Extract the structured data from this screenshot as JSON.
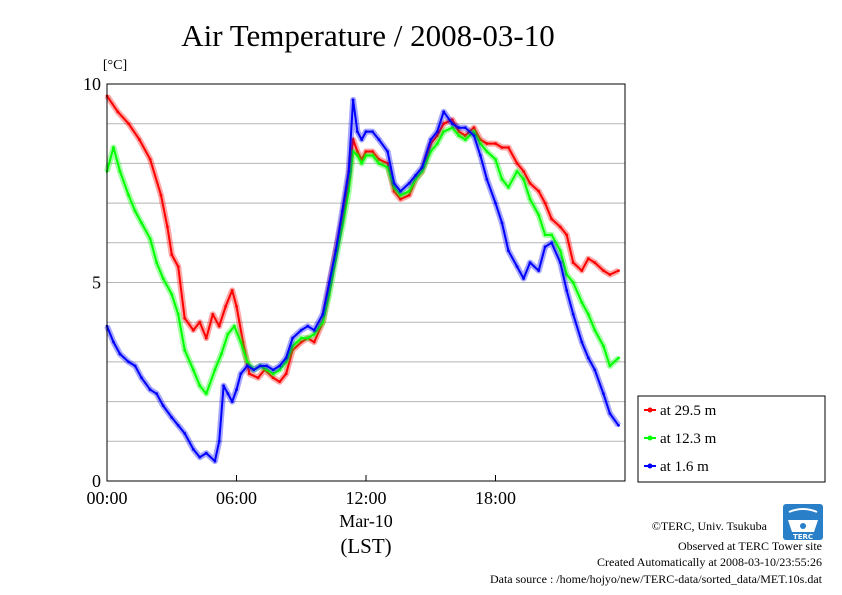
{
  "chart_data": {
    "type": "line",
    "title": "Air Temperature / 2008-03-10",
    "ylabel_unit": "[°C]",
    "ylim": [
      0,
      10
    ],
    "yticks": [
      0,
      5,
      10
    ],
    "ygrid_step": 1,
    "x_label_date": "Mar-10",
    "x_label_tz": "(LST)",
    "xlim_hours": [
      0,
      24
    ],
    "xtick_labels": [
      "00:00",
      "06:00",
      "12:00",
      "18:00"
    ],
    "xtick_hours": [
      0,
      6,
      12,
      18
    ],
    "legend_position": "right",
    "series": [
      {
        "name": "at 29.5 m",
        "color": "#ff0000",
        "x": [
          0,
          0.5,
          1,
          1.5,
          2,
          2.5,
          2.8,
          3,
          3.3,
          3.6,
          4,
          4.3,
          4.6,
          4.9,
          5.2,
          5.5,
          5.8,
          6,
          6.3,
          6.6,
          7,
          7.3,
          7.7,
          8,
          8.3,
          8.6,
          9,
          9.3,
          9.6,
          10,
          10.3,
          10.6,
          10.9,
          11.2,
          11.4,
          11.6,
          11.8,
          12,
          12.3,
          12.6,
          13,
          13.3,
          13.6,
          14,
          14.3,
          14.6,
          15,
          15.3,
          15.6,
          16,
          16.3,
          16.6,
          17,
          17.3,
          17.6,
          18,
          18.3,
          18.6,
          19,
          19.3,
          19.6,
          20,
          20.3,
          20.6,
          21,
          21.3,
          21.6,
          22,
          22.3,
          22.6,
          23,
          23.3,
          23.7
        ],
        "values": [
          9.7,
          9.3,
          9.0,
          8.6,
          8.1,
          7.2,
          6.4,
          5.7,
          5.4,
          4.1,
          3.8,
          4.0,
          3.6,
          4.2,
          3.9,
          4.4,
          4.8,
          4.4,
          3.5,
          2.7,
          2.6,
          2.8,
          2.6,
          2.5,
          2.7,
          3.3,
          3.5,
          3.6,
          3.5,
          4.0,
          4.9,
          5.8,
          6.6,
          7.6,
          8.6,
          8.3,
          8.1,
          8.3,
          8.3,
          8.1,
          8.0,
          7.3,
          7.1,
          7.2,
          7.6,
          7.8,
          8.5,
          8.7,
          9.0,
          9.1,
          8.8,
          8.7,
          8.9,
          8.6,
          8.5,
          8.5,
          8.4,
          8.4,
          8.0,
          7.8,
          7.5,
          7.3,
          7.0,
          6.6,
          6.4,
          6.2,
          5.5,
          5.3,
          5.6,
          5.5,
          5.3,
          5.2,
          5.3
        ]
      },
      {
        "name": "at 12.3 m",
        "color": "#00ff00",
        "x": [
          0,
          0.3,
          0.6,
          1,
          1.3,
          1.6,
          2,
          2.3,
          2.6,
          3,
          3.3,
          3.6,
          4,
          4.3,
          4.6,
          5,
          5.3,
          5.6,
          5.9,
          6.2,
          6.5,
          6.8,
          7.1,
          7.4,
          7.7,
          8,
          8.3,
          8.6,
          9,
          9.3,
          9.6,
          10,
          10.3,
          10.6,
          10.9,
          11.2,
          11.4,
          11.6,
          11.8,
          12,
          12.3,
          12.6,
          13,
          13.3,
          13.6,
          14,
          14.3,
          14.6,
          15,
          15.3,
          15.6,
          16,
          16.3,
          16.6,
          17,
          17.3,
          17.6,
          18,
          18.3,
          18.6,
          19,
          19.3,
          19.6,
          20,
          20.3,
          20.6,
          21,
          21.3,
          21.6,
          22,
          22.3,
          22.6,
          23,
          23.3,
          23.7
        ],
        "values": [
          7.8,
          8.4,
          7.8,
          7.2,
          6.8,
          6.5,
          6.1,
          5.5,
          5.1,
          4.7,
          4.2,
          3.3,
          2.8,
          2.4,
          2.2,
          2.8,
          3.2,
          3.7,
          3.9,
          3.5,
          3.0,
          2.8,
          2.9,
          2.8,
          2.7,
          2.8,
          3.0,
          3.4,
          3.6,
          3.6,
          3.7,
          4.0,
          4.7,
          5.6,
          6.4,
          7.3,
          8.3,
          8.2,
          8.0,
          8.2,
          8.2,
          8.0,
          7.9,
          7.4,
          7.2,
          7.3,
          7.6,
          7.8,
          8.3,
          8.5,
          8.8,
          8.9,
          8.7,
          8.6,
          8.8,
          8.5,
          8.3,
          8.1,
          7.6,
          7.4,
          7.8,
          7.6,
          7.1,
          6.7,
          6.2,
          6.2,
          5.8,
          5.2,
          5.0,
          4.5,
          4.2,
          3.8,
          3.4,
          2.9,
          3.1
        ]
      },
      {
        "name": "at 1.6 m",
        "color": "#0000ff",
        "x": [
          0,
          0.3,
          0.6,
          1,
          1.3,
          1.6,
          2,
          2.3,
          2.6,
          3,
          3.3,
          3.6,
          4,
          4.3,
          4.6,
          5,
          5.2,
          5.4,
          5.6,
          5.8,
          6,
          6.2,
          6.5,
          6.8,
          7.1,
          7.4,
          7.7,
          8,
          8.3,
          8.6,
          9,
          9.3,
          9.6,
          10,
          10.3,
          10.6,
          10.9,
          11.2,
          11.4,
          11.6,
          11.8,
          12,
          12.3,
          12.6,
          13,
          13.3,
          13.6,
          14,
          14.3,
          14.6,
          15,
          15.3,
          15.6,
          16,
          16.3,
          16.6,
          17,
          17.3,
          17.6,
          18,
          18.3,
          18.6,
          19,
          19.3,
          19.6,
          20,
          20.3,
          20.6,
          21,
          21.3,
          21.6,
          22,
          22.3,
          22.6,
          23,
          23.3,
          23.7
        ],
        "values": [
          3.9,
          3.5,
          3.2,
          3.0,
          2.9,
          2.6,
          2.3,
          2.2,
          1.9,
          1.6,
          1.4,
          1.2,
          0.8,
          0.6,
          0.7,
          0.5,
          1.0,
          2.4,
          2.2,
          2.0,
          2.3,
          2.7,
          2.9,
          2.8,
          2.9,
          2.9,
          2.8,
          2.9,
          3.1,
          3.6,
          3.8,
          3.9,
          3.8,
          4.2,
          5.0,
          5.8,
          6.8,
          7.8,
          9.6,
          8.8,
          8.6,
          8.8,
          8.8,
          8.6,
          8.3,
          7.5,
          7.3,
          7.5,
          7.7,
          7.9,
          8.6,
          8.8,
          9.3,
          9.0,
          8.9,
          8.9,
          8.7,
          8.2,
          7.6,
          7.0,
          6.5,
          5.8,
          5.4,
          5.1,
          5.5,
          5.3,
          5.9,
          6.0,
          5.5,
          4.8,
          4.2,
          3.5,
          3.1,
          2.8,
          2.2,
          1.7,
          1.4
        ]
      }
    ]
  },
  "footer": {
    "copyright": "©TERC, Univ. Tsukuba",
    "site": "Observed at TERC Tower site",
    "created": "Created Automatically at 2008-03-10/23:55:26",
    "source": "Data source : /home/hojyo/new/TERC-data/sorted_data/MET.10s.dat"
  },
  "logo": {
    "text": "TERC"
  }
}
